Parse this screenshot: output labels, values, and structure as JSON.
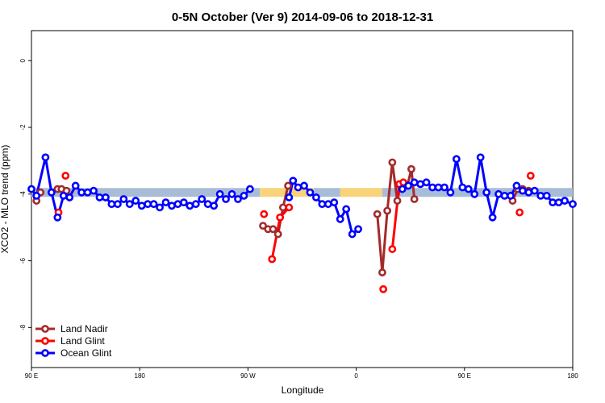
{
  "chart_data": {
    "type": "line",
    "title": "0-5N October (Ver 9)   2014-09-06 to 2018-12-31",
    "xlabel": "Longitude",
    "ylabel": "XCO2 - MLO trend (ppm)",
    "xlim": [
      -90,
      180
    ],
    "ylim": [
      -9.2,
      0.9
    ],
    "x_ticks": [
      -90,
      -45,
      0,
      45,
      90,
      135,
      180
    ],
    "x_tick_labels": [
      "90 E",
      "180",
      "90 W",
      "0",
      "90 E",
      "180"
    ],
    "x_tick_positions": [
      -90,
      -36,
      18,
      72,
      126,
      180
    ],
    "y_ticks": [
      0,
      -2,
      -4,
      -6,
      -8
    ],
    "y_tick_labels": [
      "0",
      "-2",
      "-4",
      "-6",
      "-8"
    ],
    "legend_position": "bottom-left",
    "colors": {
      "land_nadir": "#a52a2a",
      "land_glint": "#ff0000",
      "ocean_glint": "#0000ff",
      "band_ocean": "#a8bcd8",
      "band_land": "#f8d37a"
    },
    "band": {
      "y": -3.95,
      "segments": [
        {
          "from": -90,
          "to": 24,
          "type": "ocean"
        },
        {
          "from": 24,
          "to": 51,
          "type": "land"
        },
        {
          "from": 51,
          "to": 64,
          "type": "ocean"
        },
        {
          "from": 64,
          "to": 85,
          "type": "land"
        },
        {
          "from": 85,
          "to": 96,
          "type": "ocean"
        },
        {
          "from": 96,
          "to": 180,
          "type": "ocean"
        }
      ]
    },
    "series": [
      {
        "name": "Land Nadir",
        "color": "#a52a2a",
        "segments": [
          [
            [
              -87.5,
              -4.2
            ],
            [
              -85.5,
              -3.95
            ]
          ],
          [
            [
              -77,
              -3.85
            ],
            [
              -75,
              -3.85
            ],
            [
              -72.5,
              -3.9
            ]
          ],
          [
            [
              25.5,
              -4.95
            ],
            [
              28,
              -5.05
            ],
            [
              30.5,
              -5.05
            ],
            [
              33,
              -5.2
            ],
            [
              35.5,
              -4.4
            ],
            [
              38,
              -3.75
            ]
          ],
          [
            [
              82.5,
              -4.6
            ],
            [
              85,
              -6.35
            ],
            [
              87.5,
              -4.5
            ],
            [
              90,
              -3.05
            ],
            [
              92.5,
              -4.2
            ],
            [
              94,
              -3.75
            ],
            [
              97.5,
              -3.75
            ],
            [
              99.5,
              -3.25
            ],
            [
              101,
              -4.15
            ]
          ],
          [
            [
              150,
              -4.2
            ],
            [
              152.5,
              -3.85
            ],
            [
              155,
              -3.85
            ],
            [
              158,
              -3.9
            ]
          ]
        ]
      },
      {
        "name": "Land Glint",
        "color": "#ff0000",
        "segments": [
          [
            [
              -76.5,
              -4.55
            ]
          ],
          [
            [
              -73,
              -3.45
            ]
          ],
          [
            [
              26,
              -4.6
            ]
          ],
          [
            [
              30,
              -5.95
            ],
            [
              34,
              -4.7
            ],
            [
              38.5,
              -4.4
            ]
          ],
          [
            [
              85.5,
              -6.85
            ]
          ],
          [
            [
              90,
              -5.65
            ],
            [
              93.5,
              -3.7
            ],
            [
              95.5,
              -3.65
            ]
          ],
          [
            [
              153.5,
              -4.55
            ]
          ],
          [
            [
              159,
              -3.45
            ]
          ]
        ]
      },
      {
        "name": "Ocean Glint",
        "color": "#0000ff",
        "segments": [
          [
            [
              -90,
              -3.85
            ],
            [
              -87.5,
              -4.05
            ],
            [
              -83,
              -2.9
            ],
            [
              -80,
              -3.95
            ],
            [
              -77,
              -4.7
            ],
            [
              -74,
              -4.05
            ],
            [
              -71,
              -4.1
            ],
            [
              -68,
              -3.75
            ],
            [
              -65,
              -3.95
            ],
            [
              -62,
              -3.95
            ],
            [
              -59,
              -3.9
            ],
            [
              -56,
              -4.1
            ],
            [
              -53,
              -4.1
            ],
            [
              -50,
              -4.3
            ],
            [
              -47,
              -4.3
            ],
            [
              -44,
              -4.15
            ],
            [
              -41,
              -4.3
            ],
            [
              -38,
              -4.2
            ],
            [
              -35,
              -4.35
            ],
            [
              -32,
              -4.3
            ],
            [
              -29,
              -4.3
            ],
            [
              -26,
              -4.4
            ],
            [
              -23,
              -4.25
            ],
            [
              -20,
              -4.35
            ],
            [
              -17,
              -4.3
            ],
            [
              -14,
              -4.25
            ],
            [
              -11,
              -4.35
            ],
            [
              -8,
              -4.3
            ],
            [
              -5,
              -4.15
            ],
            [
              -2,
              -4.3
            ],
            [
              1,
              -4.35
            ],
            [
              4,
              -4.0
            ],
            [
              7,
              -4.15
            ],
            [
              10,
              -4.0
            ],
            [
              13,
              -4.15
            ],
            [
              16,
              -4.05
            ],
            [
              19,
              -3.85
            ]
          ],
          [
            [
              38.5,
              -4.1
            ],
            [
              40.5,
              -3.6
            ],
            [
              43,
              -3.8
            ],
            [
              46,
              -3.75
            ],
            [
              49,
              -3.95
            ],
            [
              52,
              -4.1
            ],
            [
              55,
              -4.3
            ],
            [
              58,
              -4.3
            ],
            [
              61,
              -4.25
            ],
            [
              64,
              -4.75
            ],
            [
              67,
              -4.45
            ],
            [
              70,
              -5.2
            ],
            [
              73,
              -5.05
            ]
          ],
          [
            [
              95,
              -3.85
            ],
            [
              98,
              -3.75
            ],
            [
              101,
              -3.65
            ],
            [
              104,
              -3.7
            ],
            [
              107,
              -3.65
            ],
            [
              110,
              -3.8
            ],
            [
              113,
              -3.8
            ],
            [
              116,
              -3.8
            ],
            [
              119,
              -3.95
            ],
            [
              122,
              -2.95
            ],
            [
              125,
              -3.8
            ],
            [
              128,
              -3.85
            ],
            [
              131,
              -4.0
            ],
            [
              134,
              -2.9
            ],
            [
              137,
              -3.95
            ],
            [
              140,
              -4.7
            ],
            [
              143,
              -4.0
            ],
            [
              146,
              -4.05
            ],
            [
              149,
              -4.05
            ],
            [
              152,
              -3.75
            ],
            [
              155,
              -3.9
            ],
            [
              158,
              -3.95
            ],
            [
              161,
              -3.9
            ],
            [
              164,
              -4.05
            ],
            [
              167,
              -4.05
            ],
            [
              170,
              -4.25
            ],
            [
              173,
              -4.25
            ],
            [
              176,
              -4.2
            ],
            [
              180,
              -4.3
            ]
          ]
        ]
      }
    ]
  }
}
